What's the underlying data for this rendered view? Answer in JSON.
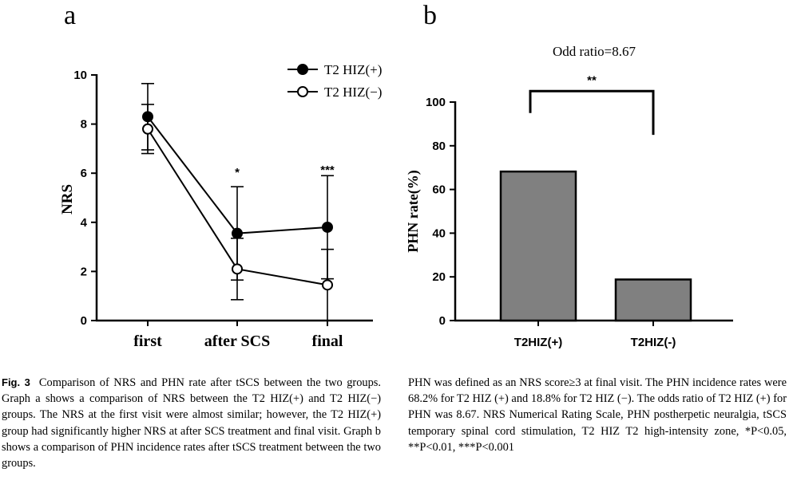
{
  "chart_data": [
    {
      "panel": "a",
      "type": "line",
      "xlabel": "",
      "ylabel": "NRS",
      "ylim": [
        0,
        10
      ],
      "yticks": [
        0,
        2,
        4,
        6,
        8,
        10
      ],
      "categories": [
        "first",
        "after SCS",
        "final"
      ],
      "series": [
        {
          "name": "T2 HIZ(+)",
          "marker": "filled-circle",
          "values": [
            8.3,
            3.55,
            3.8
          ],
          "err": [
            1.35,
            1.9,
            2.1
          ]
        },
        {
          "name": "T2 HIZ(−)",
          "marker": "open-circle",
          "values": [
            7.8,
            2.1,
            1.45
          ],
          "err": [
            1.0,
            1.25,
            1.45
          ]
        }
      ],
      "annotations": [
        {
          "category": "after SCS",
          "text": "*",
          "y": 6.2
        },
        {
          "category": "final",
          "text": "***",
          "y": 6.3
        }
      ],
      "legend_position": "top-right"
    },
    {
      "panel": "b",
      "type": "bar",
      "title": "Odd ratio=8.67",
      "xlabel": "",
      "ylabel": "PHN rate(%)",
      "ylim": [
        0,
        100
      ],
      "yticks": [
        0,
        20,
        40,
        60,
        80,
        100
      ],
      "categories": [
        "T2HIZ(+)",
        "T2HIZ(-)"
      ],
      "values": [
        68.2,
        18.8
      ],
      "bar_color": "#808080",
      "significance": {
        "text": "**",
        "between": [
          "T2HIZ(+)",
          "T2HIZ(-)"
        ],
        "y": 105,
        "left_drop": 95,
        "right_drop": 85
      }
    }
  ],
  "figure": {
    "panel_a_label": "a",
    "panel_b_label": "b"
  },
  "caption": {
    "fig_label": "Fig. 3",
    "left_text": "Comparison of NRS and PHN rate after tSCS between the two groups. Graph a shows a comparison of NRS between the T2 HIZ(+) and T2 HIZ(−) groups. The NRS at the first visit were almost similar; however, the T2 HIZ(+) group had significantly higher NRS at after SCS treatment and final visit. Graph b shows a comparison of PHN incidence rates after tSCS treatment between the two groups.",
    "right_text": "PHN was defined as an NRS score≥3 at final visit. The PHN incidence rates were 68.2% for T2 HIZ (+) and 18.8% for T2 HIZ (−). The odds ratio of T2 HIZ (+) for PHN was 8.67. NRS Numerical Rating Scale, PHN postherpetic neuralgia, tSCS temporary spinal cord stimulation, T2 HIZ T2 high-intensity zone, *P<0.05, **P<0.01, ***P<0.001"
  }
}
